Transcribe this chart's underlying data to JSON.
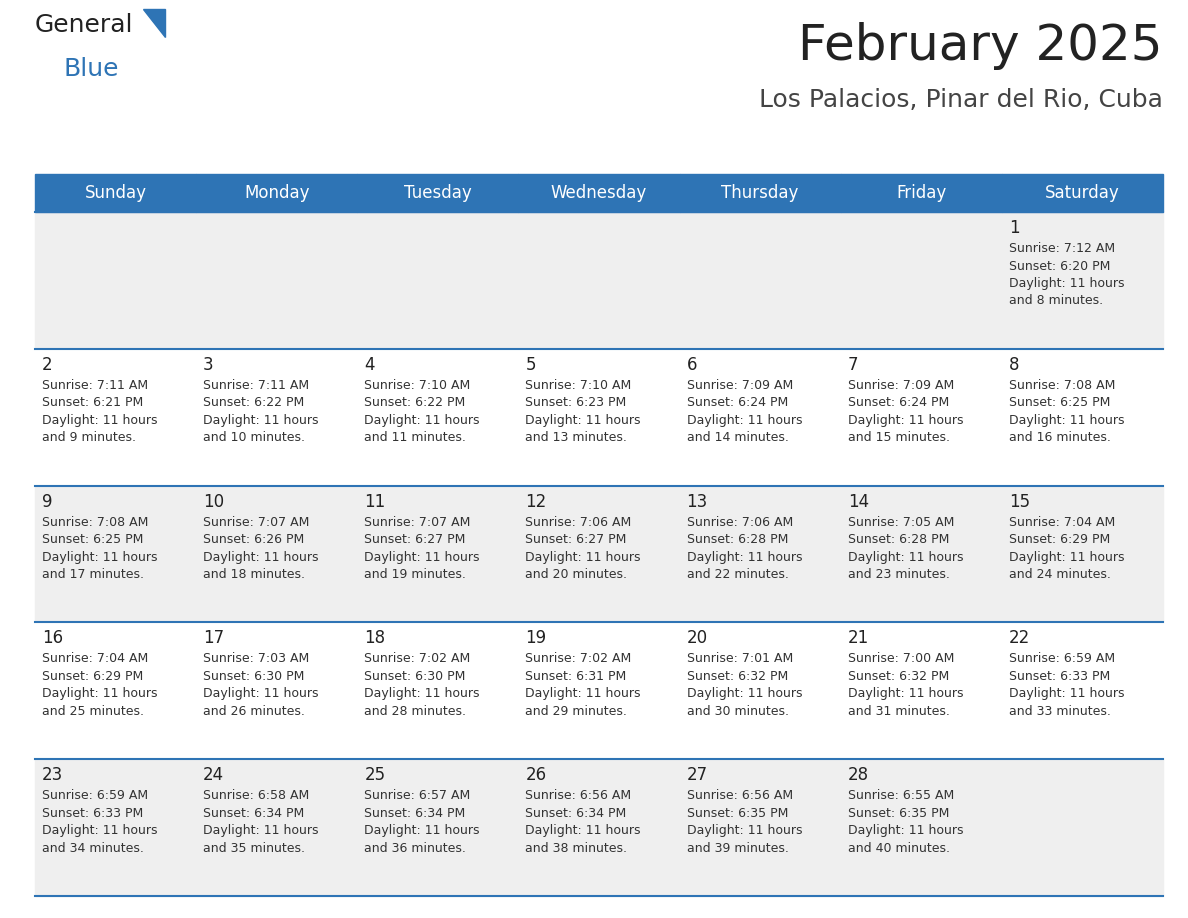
{
  "title": "February 2025",
  "subtitle": "Los Palacios, Pinar del Rio, Cuba",
  "header_bg": "#2e74b5",
  "header_text": "#ffffff",
  "row_bg_odd": "#efefef",
  "row_bg_even": "#ffffff",
  "cell_border": "#2e74b5",
  "day_names": [
    "Sunday",
    "Monday",
    "Tuesday",
    "Wednesday",
    "Thursday",
    "Friday",
    "Saturday"
  ],
  "calendar": [
    [
      null,
      null,
      null,
      null,
      null,
      null,
      {
        "day": 1,
        "sunrise": "7:12 AM",
        "sunset": "6:20 PM",
        "daylight": "11 hours and 8 minutes."
      }
    ],
    [
      {
        "day": 2,
        "sunrise": "7:11 AM",
        "sunset": "6:21 PM",
        "daylight": "11 hours and 9 minutes."
      },
      {
        "day": 3,
        "sunrise": "7:11 AM",
        "sunset": "6:22 PM",
        "daylight": "11 hours and 10 minutes."
      },
      {
        "day": 4,
        "sunrise": "7:10 AM",
        "sunset": "6:22 PM",
        "daylight": "11 hours and 11 minutes."
      },
      {
        "day": 5,
        "sunrise": "7:10 AM",
        "sunset": "6:23 PM",
        "daylight": "11 hours and 13 minutes."
      },
      {
        "day": 6,
        "sunrise": "7:09 AM",
        "sunset": "6:24 PM",
        "daylight": "11 hours and 14 minutes."
      },
      {
        "day": 7,
        "sunrise": "7:09 AM",
        "sunset": "6:24 PM",
        "daylight": "11 hours and 15 minutes."
      },
      {
        "day": 8,
        "sunrise": "7:08 AM",
        "sunset": "6:25 PM",
        "daylight": "11 hours and 16 minutes."
      }
    ],
    [
      {
        "day": 9,
        "sunrise": "7:08 AM",
        "sunset": "6:25 PM",
        "daylight": "11 hours and 17 minutes."
      },
      {
        "day": 10,
        "sunrise": "7:07 AM",
        "sunset": "6:26 PM",
        "daylight": "11 hours and 18 minutes."
      },
      {
        "day": 11,
        "sunrise": "7:07 AM",
        "sunset": "6:27 PM",
        "daylight": "11 hours and 19 minutes."
      },
      {
        "day": 12,
        "sunrise": "7:06 AM",
        "sunset": "6:27 PM",
        "daylight": "11 hours and 20 minutes."
      },
      {
        "day": 13,
        "sunrise": "7:06 AM",
        "sunset": "6:28 PM",
        "daylight": "11 hours and 22 minutes."
      },
      {
        "day": 14,
        "sunrise": "7:05 AM",
        "sunset": "6:28 PM",
        "daylight": "11 hours and 23 minutes."
      },
      {
        "day": 15,
        "sunrise": "7:04 AM",
        "sunset": "6:29 PM",
        "daylight": "11 hours and 24 minutes."
      }
    ],
    [
      {
        "day": 16,
        "sunrise": "7:04 AM",
        "sunset": "6:29 PM",
        "daylight": "11 hours and 25 minutes."
      },
      {
        "day": 17,
        "sunrise": "7:03 AM",
        "sunset": "6:30 PM",
        "daylight": "11 hours and 26 minutes."
      },
      {
        "day": 18,
        "sunrise": "7:02 AM",
        "sunset": "6:30 PM",
        "daylight": "11 hours and 28 minutes."
      },
      {
        "day": 19,
        "sunrise": "7:02 AM",
        "sunset": "6:31 PM",
        "daylight": "11 hours and 29 minutes."
      },
      {
        "day": 20,
        "sunrise": "7:01 AM",
        "sunset": "6:32 PM",
        "daylight": "11 hours and 30 minutes."
      },
      {
        "day": 21,
        "sunrise": "7:00 AM",
        "sunset": "6:32 PM",
        "daylight": "11 hours and 31 minutes."
      },
      {
        "day": 22,
        "sunrise": "6:59 AM",
        "sunset": "6:33 PM",
        "daylight": "11 hours and 33 minutes."
      }
    ],
    [
      {
        "day": 23,
        "sunrise": "6:59 AM",
        "sunset": "6:33 PM",
        "daylight": "11 hours and 34 minutes."
      },
      {
        "day": 24,
        "sunrise": "6:58 AM",
        "sunset": "6:34 PM",
        "daylight": "11 hours and 35 minutes."
      },
      {
        "day": 25,
        "sunrise": "6:57 AM",
        "sunset": "6:34 PM",
        "daylight": "11 hours and 36 minutes."
      },
      {
        "day": 26,
        "sunrise": "6:56 AM",
        "sunset": "6:34 PM",
        "daylight": "11 hours and 38 minutes."
      },
      {
        "day": 27,
        "sunrise": "6:56 AM",
        "sunset": "6:35 PM",
        "daylight": "11 hours and 39 minutes."
      },
      {
        "day": 28,
        "sunrise": "6:55 AM",
        "sunset": "6:35 PM",
        "daylight": "11 hours and 40 minutes."
      },
      null
    ]
  ],
  "fig_width": 11.88,
  "fig_height": 9.18,
  "dpi": 100,
  "title_fontsize": 36,
  "subtitle_fontsize": 18,
  "header_fontsize": 12,
  "day_num_fontsize": 12,
  "info_fontsize": 9,
  "logo_general_fontsize": 18,
  "logo_blue_fontsize": 18
}
